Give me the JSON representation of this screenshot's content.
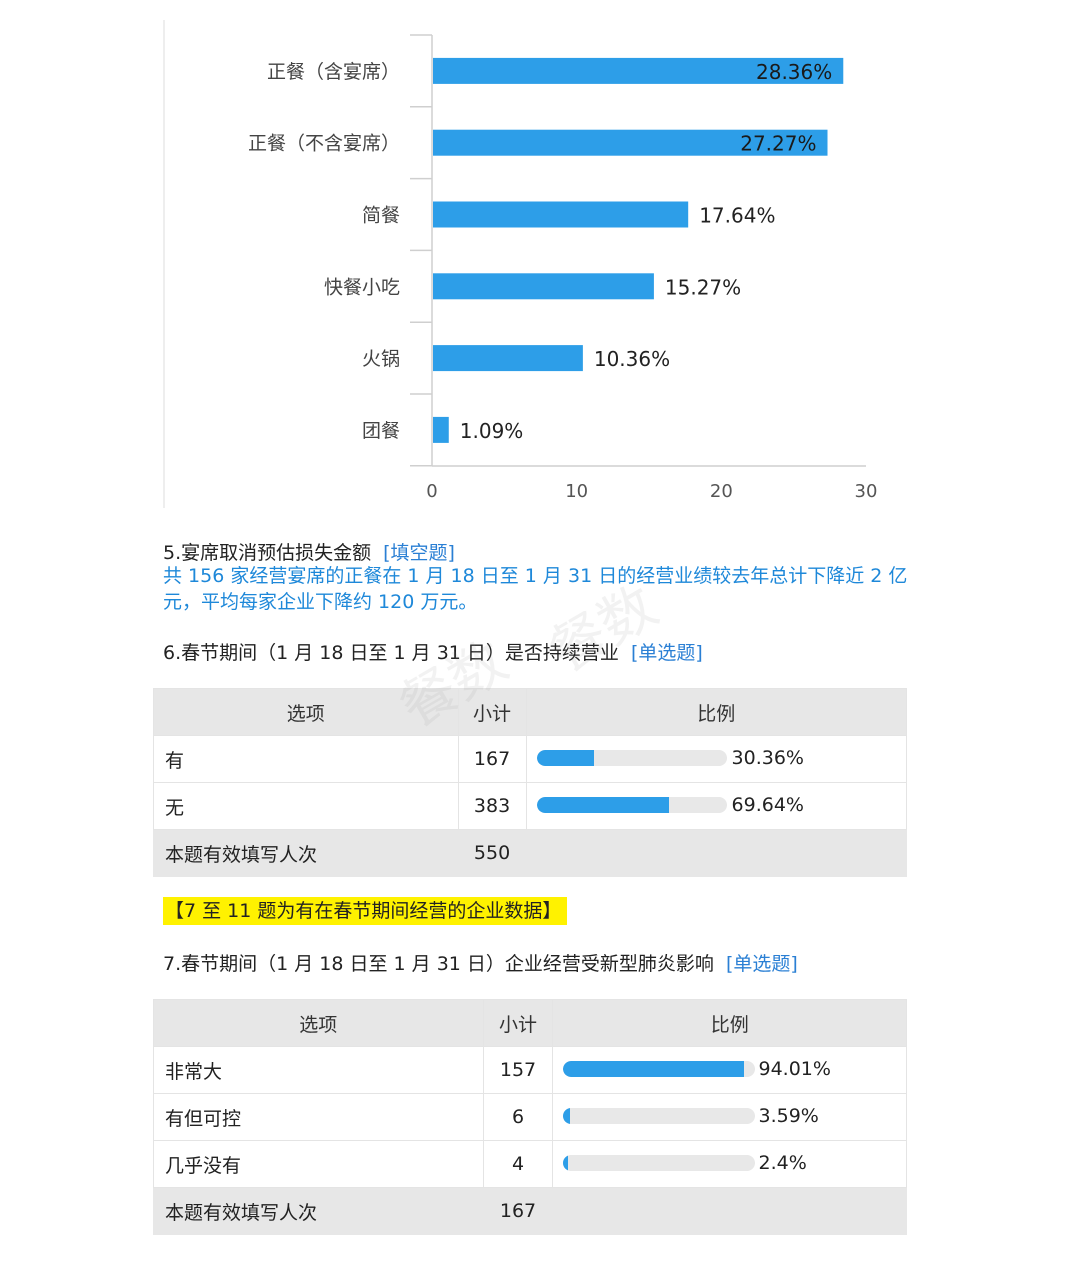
{
  "chart_data": {
    "type": "bar",
    "orientation": "horizontal",
    "categories": [
      "正餐（含宴席）",
      "正餐（不含宴席）",
      "简餐",
      "快餐小吃",
      "火锅",
      "团餐"
    ],
    "values": [
      28.36,
      27.27,
      17.64,
      15.27,
      10.36,
      1.09
    ],
    "value_labels": [
      "28.36%",
      "27.27%",
      "17.64%",
      "15.27%",
      "10.36%",
      "1.09%"
    ],
    "xlim": [
      0,
      30
    ],
    "xticks": [
      "0",
      "10",
      "20",
      "30"
    ],
    "grid": false,
    "bar_color": "#2d9ee8"
  },
  "q5": {
    "title": "5.宴席取消预估损失金额",
    "tag": "[填空题]",
    "summary": "共 156 家经营宴席的正餐在 1 月 18 日至 1 月 31 日的经营业绩较去年总计下降近 2 亿元，平均每家企业下降约 120 万元。"
  },
  "q6": {
    "title": "6.春节期间（1 月 18 日至 1 月 31 日）是否持续营业",
    "tag": "[单选题]",
    "headers": [
      "选项",
      "小计",
      "比例"
    ],
    "rows": [
      {
        "option": "有",
        "count": "167",
        "pct": "30.36%",
        "fraction": 0.3036
      },
      {
        "option": "无",
        "count": "383",
        "pct": "69.64%",
        "fraction": 0.6964
      }
    ],
    "footer_label": "本题有效填写人次",
    "footer_count": "550"
  },
  "highlight": "【7 至 11 题为有在春节期间经营的企业数据】",
  "q7": {
    "title": "7.春节期间（1 月 18 日至 1 月 31 日）企业经营受新型肺炎影响",
    "tag": "[单选题]",
    "headers": [
      "选项",
      "小计",
      "比例"
    ],
    "rows": [
      {
        "option": "非常大",
        "count": "157",
        "pct": "94.01%",
        "fraction": 0.9401
      },
      {
        "option": "有但可控",
        "count": "6",
        "pct": "3.59%",
        "fraction": 0.0359
      },
      {
        "option": "几乎没有",
        "count": "4",
        "pct": "2.4%",
        "fraction": 0.024
      }
    ],
    "footer_label": "本题有效填写人次",
    "footer_count": "167"
  },
  "watermark": "餐数"
}
